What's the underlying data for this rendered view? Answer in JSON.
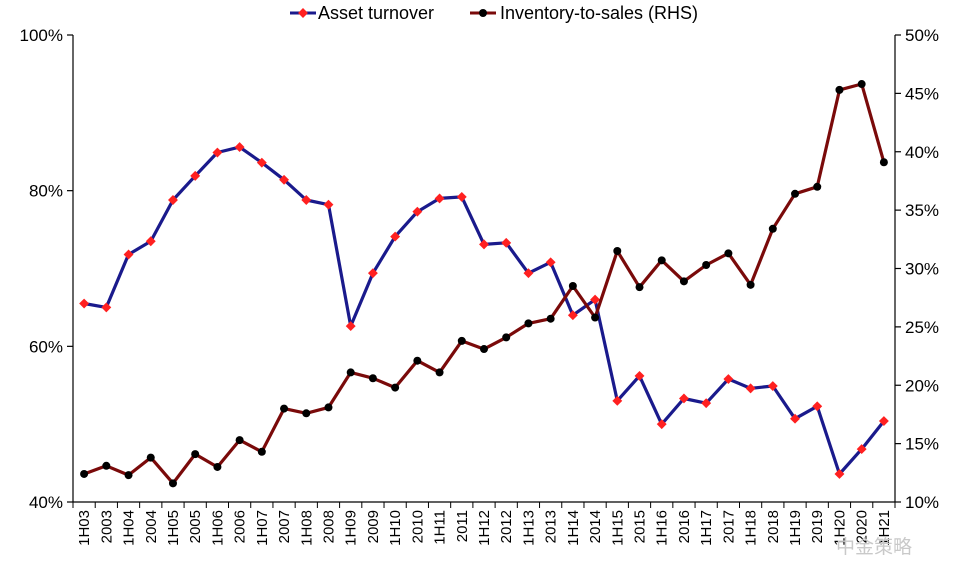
{
  "chart_data": {
    "type": "line",
    "categories": [
      "1H03",
      "2003",
      "1H04",
      "2004",
      "1H05",
      "2005",
      "1H06",
      "2006",
      "1H07",
      "2007",
      "1H08",
      "2008",
      "1H09",
      "2009",
      "1H10",
      "2010",
      "1H11",
      "2011",
      "1H12",
      "2012",
      "1H13",
      "2013",
      "1H14",
      "2014",
      "1H15",
      "2015",
      "1H16",
      "2016",
      "1H17",
      "2017",
      "1H18",
      "2018",
      "1H19",
      "2019",
      "1H20",
      "2020",
      "1H21"
    ],
    "series": [
      {
        "name": "Asset turnover",
        "axis": "left",
        "color": "#1a1a8c",
        "marker_color": "#ff2020",
        "values": [
          65.5,
          65.0,
          71.8,
          73.5,
          78.8,
          81.9,
          84.9,
          85.6,
          83.6,
          81.4,
          78.8,
          78.2,
          62.6,
          69.4,
          74.1,
          77.3,
          79.0,
          79.2,
          73.1,
          73.3,
          69.4,
          70.8,
          64.0,
          66.0,
          53.0,
          56.2,
          50.0,
          53.3,
          52.7,
          55.8,
          54.6,
          54.9,
          50.7,
          52.3,
          43.6,
          46.8,
          50.4
        ]
      },
      {
        "name": "Inventory-to-sales (RHS)",
        "axis": "right",
        "color": "#7a0a0a",
        "marker_color": "#000000",
        "values": [
          12.4,
          13.1,
          12.3,
          13.8,
          11.6,
          14.1,
          13.0,
          15.3,
          14.3,
          18.0,
          17.6,
          18.1,
          21.1,
          20.6,
          19.8,
          22.1,
          21.1,
          23.8,
          23.1,
          24.1,
          25.3,
          25.7,
          28.5,
          25.8,
          31.5,
          28.4,
          30.7,
          28.9,
          30.3,
          31.3,
          28.6,
          33.4,
          36.4,
          37.0,
          45.3,
          45.8,
          39.1
        ]
      }
    ],
    "y_left": {
      "min": 40,
      "max": 100,
      "ticks": [
        "40%",
        "60%",
        "80%",
        "100%"
      ],
      "tick_values": [
        40,
        60,
        80,
        100
      ]
    },
    "y_right": {
      "min": 10,
      "max": 50,
      "ticks": [
        "10%",
        "15%",
        "20%",
        "25%",
        "30%",
        "35%",
        "40%",
        "45%",
        "50%"
      ],
      "tick_values": [
        10,
        15,
        20,
        25,
        30,
        35,
        40,
        45,
        50
      ]
    },
    "legend_position": "top-center",
    "grid": false
  },
  "watermark": "中金策略"
}
